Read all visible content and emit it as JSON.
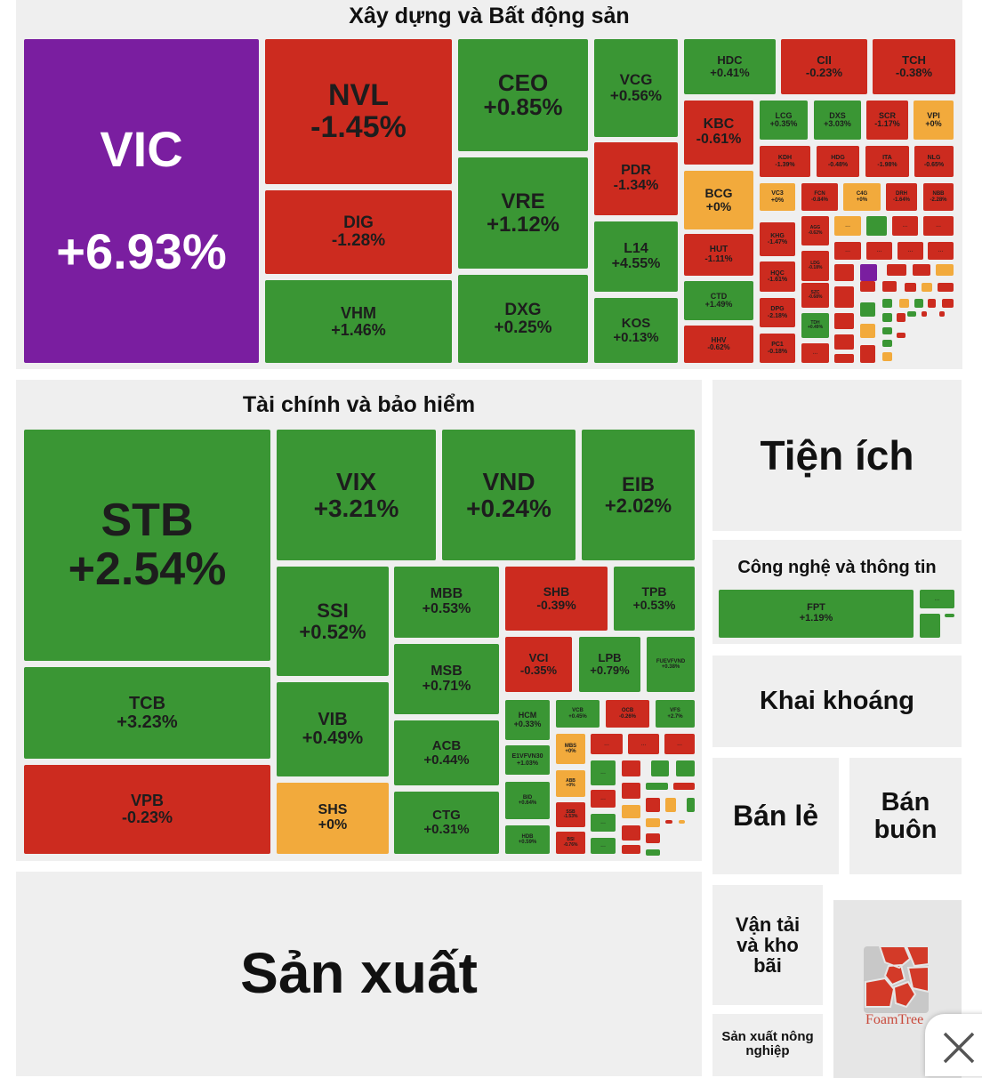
{
  "colors": {
    "up": "#3a9634",
    "down": "#cc2b1f",
    "flat": "#f2aa3c",
    "ceiling": "#7a1ea0",
    "sector_bg": "#efefef"
  },
  "placeholder_label": "...",
  "chart_data": {
    "type": "heatmap",
    "sectors": [
      {
        "name": "Xây dựng và Bất động sản",
        "tiles": [
          {
            "ticker": "VIC",
            "change": "+6.93%",
            "status": "ceiling"
          },
          {
            "ticker": "NVL",
            "change": "-1.45%",
            "status": "down"
          },
          {
            "ticker": "DIG",
            "change": "-1.28%",
            "status": "down"
          },
          {
            "ticker": "VHM",
            "change": "+1.46%",
            "status": "up"
          },
          {
            "ticker": "CEO",
            "change": "+0.85%",
            "status": "up"
          },
          {
            "ticker": "VRE",
            "change": "+1.12%",
            "status": "up"
          },
          {
            "ticker": "DXG",
            "change": "+0.25%",
            "status": "up"
          },
          {
            "ticker": "VCG",
            "change": "+0.56%",
            "status": "up"
          },
          {
            "ticker": "PDR",
            "change": "-1.34%",
            "status": "down"
          },
          {
            "ticker": "L14",
            "change": "+4.55%",
            "status": "up"
          },
          {
            "ticker": "KOS",
            "change": "+0.13%",
            "status": "up"
          },
          {
            "ticker": "HDC",
            "change": "+0.41%",
            "status": "up"
          },
          {
            "ticker": "CII",
            "change": "-0.23%",
            "status": "down"
          },
          {
            "ticker": "TCH",
            "change": "-0.38%",
            "status": "down"
          },
          {
            "ticker": "KBC",
            "change": "-0.61%",
            "status": "down"
          },
          {
            "ticker": "BCG",
            "change": "+0%",
            "status": "flat"
          },
          {
            "ticker": "HUT",
            "change": "-1.11%",
            "status": "down"
          },
          {
            "ticker": "CTD",
            "change": "+1.49%",
            "status": "up"
          },
          {
            "ticker": "HHV",
            "change": "-0.62%",
            "status": "down"
          },
          {
            "ticker": "LCG",
            "change": "+0.35%",
            "status": "up"
          },
          {
            "ticker": "DXS",
            "change": "+3.03%",
            "status": "up"
          },
          {
            "ticker": "SCR",
            "change": "-1.17%",
            "status": "down"
          },
          {
            "ticker": "VPI",
            "change": "+0%",
            "status": "flat"
          },
          {
            "ticker": "KDH",
            "change": "-1.39%",
            "status": "down"
          },
          {
            "ticker": "HDG",
            "change": "-0.48%",
            "status": "down"
          },
          {
            "ticker": "ITA",
            "change": "-1.98%",
            "status": "down"
          },
          {
            "ticker": "NLG",
            "change": "-0.65%",
            "status": "down"
          },
          {
            "ticker": "VC3",
            "change": "+0%",
            "status": "flat"
          },
          {
            "ticker": "FCN",
            "change": "-0.84%",
            "status": "down"
          },
          {
            "ticker": "C4G",
            "change": "+0%",
            "status": "flat"
          },
          {
            "ticker": "DRH",
            "change": "-1.64%",
            "status": "down"
          },
          {
            "ticker": "NBB",
            "change": "-2.28%",
            "status": "down"
          },
          {
            "ticker": "KHG",
            "change": "-1.47%",
            "status": "down"
          },
          {
            "ticker": "HQC",
            "change": "-1.61%",
            "status": "down"
          },
          {
            "ticker": "DPG",
            "change": "-2.18%",
            "status": "down"
          },
          {
            "ticker": "PC1",
            "change": "-0.18%",
            "status": "down"
          },
          {
            "ticker": "AGG",
            "change": "-0.62%",
            "status": "down"
          },
          {
            "ticker": "LDG",
            "change": "-0.18%",
            "status": "down"
          },
          {
            "ticker": "SZC",
            "change": "-0.68%",
            "status": "down"
          },
          {
            "ticker": "TDH",
            "change": "+0.49%",
            "status": "up"
          }
        ],
        "unlabeled": [
          "down",
          "flat",
          "up",
          "down",
          "down",
          "down",
          "down",
          "down",
          "down",
          "down",
          "ceiling",
          "down",
          "down",
          "flat",
          "down",
          "down",
          "down",
          "down",
          "flat",
          "down",
          "down",
          "up",
          "up",
          "flat",
          "up",
          "down",
          "down",
          "down",
          "flat",
          "up",
          "down",
          "up",
          "down",
          "down",
          "down",
          "down",
          "up",
          "up",
          "flat",
          "down"
        ]
      },
      {
        "name": "Tài chính và bảo hiểm",
        "tiles": [
          {
            "ticker": "STB",
            "change": "+2.54%",
            "status": "up"
          },
          {
            "ticker": "TCB",
            "change": "+3.23%",
            "status": "up"
          },
          {
            "ticker": "VPB",
            "change": "-0.23%",
            "status": "down"
          },
          {
            "ticker": "VIX",
            "change": "+3.21%",
            "status": "up"
          },
          {
            "ticker": "VND",
            "change": "+0.24%",
            "status": "up"
          },
          {
            "ticker": "EIB",
            "change": "+2.02%",
            "status": "up"
          },
          {
            "ticker": "SSI",
            "change": "+0.52%",
            "status": "up"
          },
          {
            "ticker": "VIB",
            "change": "+0.49%",
            "status": "up"
          },
          {
            "ticker": "SHS",
            "change": "+0%",
            "status": "flat"
          },
          {
            "ticker": "MBB",
            "change": "+0.53%",
            "status": "up"
          },
          {
            "ticker": "MSB",
            "change": "+0.71%",
            "status": "up"
          },
          {
            "ticker": "ACB",
            "change": "+0.44%",
            "status": "up"
          },
          {
            "ticker": "CTG",
            "change": "+0.31%",
            "status": "up"
          },
          {
            "ticker": "SHB",
            "change": "-0.39%",
            "status": "down"
          },
          {
            "ticker": "TPB",
            "change": "+0.53%",
            "status": "up"
          },
          {
            "ticker": "VCI",
            "change": "-0.35%",
            "status": "down"
          },
          {
            "ticker": "LPB",
            "change": "+0.79%",
            "status": "up"
          },
          {
            "ticker": "FUEVFVND",
            "change": "+0.38%",
            "status": "up"
          },
          {
            "ticker": "HCM",
            "change": "+0.33%",
            "status": "up"
          },
          {
            "ticker": "VCB",
            "change": "+0.45%",
            "status": "up"
          },
          {
            "ticker": "OCB",
            "change": "-0.26%",
            "status": "down"
          },
          {
            "ticker": "VFS",
            "change": "+2.7%",
            "status": "up"
          },
          {
            "ticker": "E1VFVN30",
            "change": "+1.03%",
            "status": "up"
          },
          {
            "ticker": "BID",
            "change": "+0.64%",
            "status": "up"
          },
          {
            "ticker": "HDB",
            "change": "+0.59%",
            "status": "up"
          },
          {
            "ticker": "MBS",
            "change": "+0%",
            "status": "flat"
          },
          {
            "ticker": "ABB",
            "change": "+0%",
            "status": "flat"
          },
          {
            "ticker": "SSB",
            "change": "-1.53%",
            "status": "down"
          },
          {
            "ticker": "BSI",
            "change": "-0.76%",
            "status": "down"
          }
        ],
        "unlabeled": [
          "down",
          "down",
          "down",
          "up",
          "down",
          "up",
          "up",
          "down",
          "down",
          "up",
          "down",
          "up",
          "flat",
          "down",
          "flat",
          "up",
          "up",
          "down",
          "flat",
          "down",
          "flat",
          "down",
          "down",
          "up"
        ]
      },
      {
        "name": "Tiện ích",
        "tiles": []
      },
      {
        "name": "Công nghệ và thông tin",
        "tiles": [
          {
            "ticker": "FPT",
            "change": "+1.19%",
            "status": "up"
          }
        ],
        "unlabeled": [
          "up",
          "up",
          "up"
        ]
      },
      {
        "name": "Khai khoáng",
        "tiles": []
      },
      {
        "name": "Bán lẻ",
        "tiles": []
      },
      {
        "name": "Bán buôn",
        "tiles": []
      },
      {
        "name": "Sản xuất",
        "tiles": []
      },
      {
        "name": "Vận tải và kho bãi",
        "tiles": []
      },
      {
        "name": "Sản xuất nông nghiệp",
        "tiles": []
      }
    ]
  },
  "branding": {
    "logo_text": "FoamTree"
  },
  "close_button": {
    "icon": "close-icon"
  }
}
